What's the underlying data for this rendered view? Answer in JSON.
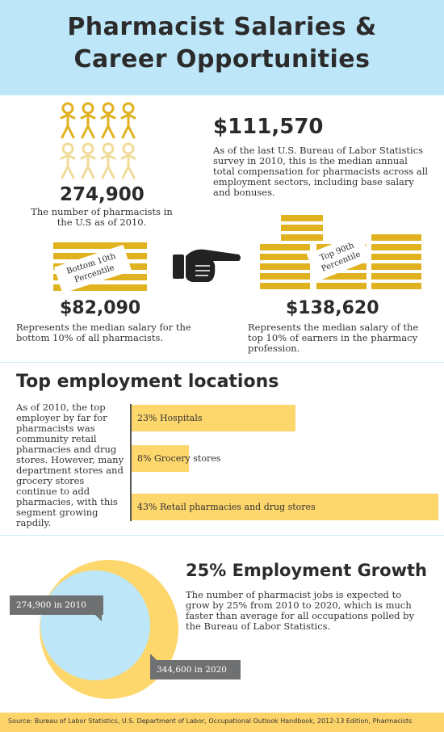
{
  "header": {
    "title_line1": "Pharmacist Salaries &",
    "title_line2": "Career Opportunities"
  },
  "pharmacists": {
    "number": "274,900",
    "caption": "The number of pharmacists in the U.S as of 2010."
  },
  "median": {
    "value": "$111,570",
    "text": "As of the last U.S. Bureau of Labor Statistics survey in 2010, this is the median annual total compensation for pharmacists across all employment sectors, including base salary and bonuses."
  },
  "bottom": {
    "tag_line1": "Bottom 10th",
    "tag_line2": "Percentile",
    "value": "$82,090",
    "text": "Represents the median salary for the bottom 10% of all pharmacists."
  },
  "top": {
    "tag_line1": "Top 90th",
    "tag_line2": "Percentile",
    "value": "$138,620",
    "text": "Represents the median salary of the top 10% of earners in the pharmacy profession."
  },
  "locations": {
    "title": "Top employment locations",
    "text": "As of 2010, the top employer by far for pharmacists was community retail pharmacies and drug stores. However, many department stores and grocery stores continue to add pharmacies, with this segment growing rapdily.",
    "bars": [
      {
        "label": "23% Hospitals",
        "value": 23
      },
      {
        "label": "8% Grocery stores",
        "value": 8
      },
      {
        "label": "43% Retail pharmacies and drug stores",
        "value": 43
      }
    ]
  },
  "growth": {
    "title": "25% Employment Growth",
    "text": "The number of pharmacist jobs is expected to grow by 25% from 2010 to 2020, which is much faster than average for all occupations polled by the Bureau of Labor Statistics.",
    "label_2010": "274,900 in 2010",
    "label_2020": "344,600 in 2020",
    "value_2010": 274900,
    "value_2020": 344600
  },
  "footer": {
    "source": "Source: Bureau of Labor Statistics, U.S. Department of Labor, Occupational Outlook Handbook, 2012-13 Edition, Pharmacists"
  },
  "colors": {
    "header_bg": "#bde7f9",
    "gold": "#e0b21f",
    "bar": "#fdd66c",
    "dark": "#2b2b2b",
    "circle_outer": "#fdd66c",
    "circle_inner": "#bde7f9"
  }
}
